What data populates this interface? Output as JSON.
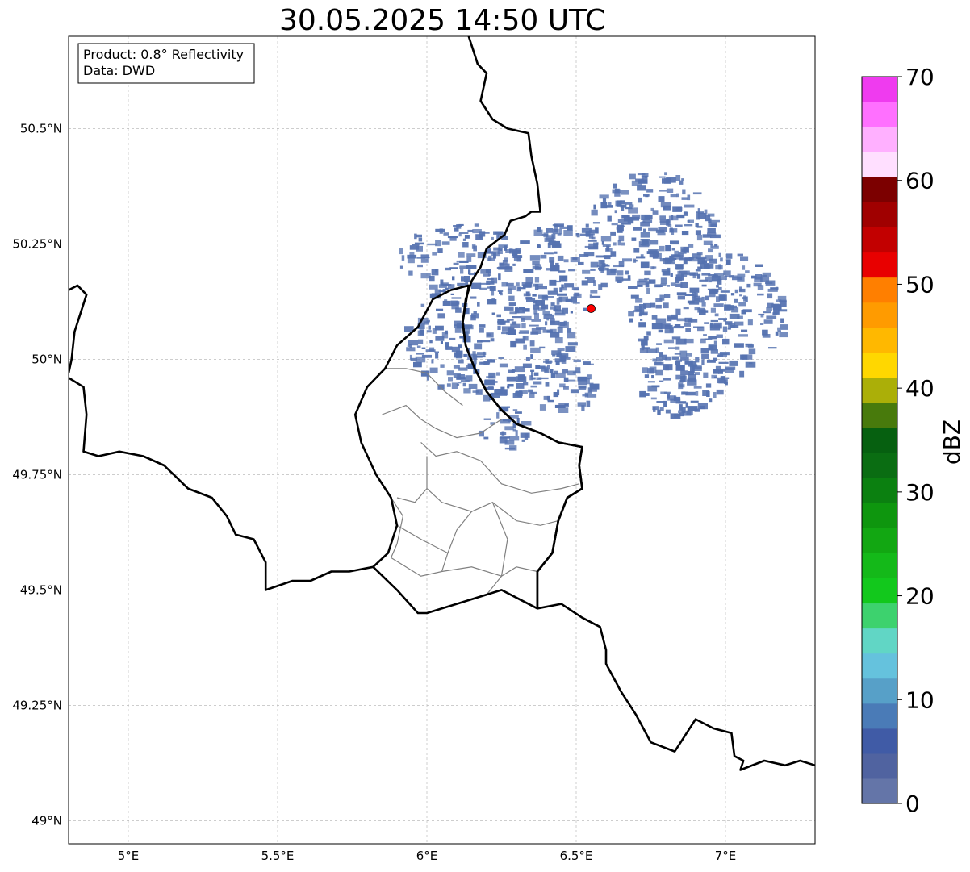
{
  "title": "30.05.2025 14:50 UTC",
  "info_box": {
    "product": "Product: 0.8° Reflectivity",
    "data": "Data: DWD"
  },
  "map": {
    "type": "radar-reflectivity-map",
    "lon_range": [
      4.8,
      7.3
    ],
    "lat_range": [
      48.95,
      50.7
    ],
    "lon_ticks": [
      {
        "value": 5.0,
        "label": "5°E"
      },
      {
        "value": 5.5,
        "label": "5.5°E"
      },
      {
        "value": 6.0,
        "label": "6°E"
      },
      {
        "value": 6.5,
        "label": "6.5°E"
      },
      {
        "value": 7.0,
        "label": "7°E"
      }
    ],
    "lat_ticks": [
      {
        "value": 50.5,
        "label": "50.5°N"
      },
      {
        "value": 50.25,
        "label": "50.25°N"
      },
      {
        "value": 50.0,
        "label": "50°N"
      },
      {
        "value": 49.75,
        "label": "49.75°N"
      },
      {
        "value": 49.5,
        "label": "49.5°N"
      },
      {
        "value": 49.25,
        "label": "49.25°N"
      },
      {
        "value": 49.0,
        "label": "49°N"
      }
    ],
    "gridlines": true,
    "radar_site": {
      "lon": 6.55,
      "lat": 50.11,
      "color": "#ff0000"
    },
    "echo_regions": [
      {
        "lon": 6.93,
        "lat": 50.1,
        "r_lon": 0.26,
        "r_lat": 0.15
      },
      {
        "lon": 6.75,
        "lat": 50.28,
        "r_lon": 0.22,
        "r_lat": 0.13
      },
      {
        "lon": 6.2,
        "lat": 50.05,
        "r_lon": 0.28,
        "r_lat": 0.13
      },
      {
        "lon": 6.45,
        "lat": 50.2,
        "r_lon": 0.18,
        "r_lat": 0.1
      },
      {
        "lon": 6.1,
        "lat": 50.22,
        "r_lon": 0.2,
        "r_lat": 0.08
      },
      {
        "lon": 6.45,
        "lat": 49.95,
        "r_lon": 0.12,
        "r_lat": 0.06
      },
      {
        "lon": 6.85,
        "lat": 49.95,
        "r_lon": 0.15,
        "r_lat": 0.07
      },
      {
        "lon": 6.25,
        "lat": 49.85,
        "r_lon": 0.08,
        "r_lat": 0.05
      }
    ],
    "country_borders": [
      [
        [
          6.14,
          50.7
        ],
        [
          6.17,
          50.64
        ],
        [
          6.2,
          50.62
        ],
        [
          6.18,
          50.56
        ],
        [
          6.22,
          50.52
        ],
        [
          6.27,
          50.5
        ],
        [
          6.34,
          50.49
        ],
        [
          6.35,
          50.44
        ],
        [
          6.37,
          50.38
        ],
        [
          6.38,
          50.32
        ],
        [
          6.35,
          50.32
        ],
        [
          6.33,
          50.31
        ],
        [
          6.28,
          50.3
        ],
        [
          6.26,
          50.27
        ],
        [
          6.2,
          50.24
        ],
        [
          6.18,
          50.2
        ],
        [
          6.15,
          50.17
        ],
        [
          6.13,
          50.13
        ],
        [
          6.12,
          50.08
        ],
        [
          6.13,
          50.03
        ],
        [
          6.16,
          49.98
        ],
        [
          6.2,
          49.93
        ],
        [
          6.25,
          49.89
        ],
        [
          6.3,
          49.86
        ],
        [
          6.38,
          49.84
        ],
        [
          6.44,
          49.82
        ],
        [
          6.52,
          49.81
        ],
        [
          6.51,
          49.77
        ],
        [
          6.52,
          49.72
        ],
        [
          6.47,
          49.7
        ],
        [
          6.44,
          49.65
        ],
        [
          6.42,
          49.58
        ],
        [
          6.37,
          49.54
        ],
        [
          6.37,
          49.46
        ]
      ],
      [
        [
          5.82,
          49.55
        ],
        [
          5.87,
          49.58
        ],
        [
          5.9,
          49.64
        ],
        [
          5.88,
          49.7
        ],
        [
          5.83,
          49.75
        ],
        [
          5.78,
          49.82
        ],
        [
          5.76,
          49.88
        ],
        [
          5.8,
          49.94
        ],
        [
          5.86,
          49.98
        ],
        [
          5.9,
          50.03
        ],
        [
          5.97,
          50.07
        ],
        [
          6.02,
          50.13
        ],
        [
          6.08,
          50.15
        ],
        [
          6.14,
          50.16
        ],
        [
          6.12,
          50.08
        ],
        [
          6.13,
          50.03
        ],
        [
          6.16,
          49.98
        ],
        [
          6.2,
          49.93
        ],
        [
          6.25,
          49.89
        ],
        [
          6.3,
          49.86
        ],
        [
          6.38,
          49.84
        ],
        [
          6.44,
          49.82
        ],
        [
          6.52,
          49.81
        ],
        [
          6.51,
          49.77
        ],
        [
          6.52,
          49.72
        ],
        [
          6.47,
          49.7
        ],
        [
          6.44,
          49.65
        ],
        [
          6.42,
          49.58
        ],
        [
          6.37,
          49.54
        ],
        [
          6.37,
          49.46
        ],
        [
          6.25,
          49.5
        ],
        [
          6.2,
          49.49
        ],
        [
          6.1,
          49.47
        ],
        [
          6.0,
          49.45
        ],
        [
          5.97,
          49.45
        ],
        [
          5.9,
          49.5
        ],
        [
          5.82,
          49.55
        ]
      ],
      [
        [
          4.8,
          50.15
        ],
        [
          4.83,
          50.16
        ],
        [
          4.86,
          50.14
        ],
        [
          4.84,
          50.1
        ],
        [
          4.82,
          50.06
        ],
        [
          4.81,
          50.0
        ],
        [
          4.8,
          49.97
        ]
      ],
      [
        [
          4.8,
          49.96
        ],
        [
          4.85,
          49.94
        ],
        [
          4.86,
          49.88
        ],
        [
          4.85,
          49.8
        ],
        [
          4.9,
          49.79
        ],
        [
          4.97,
          49.8
        ],
        [
          5.05,
          49.79
        ],
        [
          5.12,
          49.77
        ],
        [
          5.2,
          49.72
        ],
        [
          5.28,
          49.7
        ],
        [
          5.33,
          49.66
        ],
        [
          5.36,
          49.62
        ],
        [
          5.42,
          49.61
        ],
        [
          5.46,
          49.56
        ],
        [
          5.46,
          49.5
        ],
        [
          5.55,
          49.52
        ],
        [
          5.61,
          49.52
        ],
        [
          5.68,
          49.54
        ],
        [
          5.74,
          49.54
        ],
        [
          5.82,
          49.55
        ]
      ],
      [
        [
          6.37,
          49.46
        ],
        [
          6.45,
          49.47
        ],
        [
          6.52,
          49.44
        ],
        [
          6.58,
          49.42
        ],
        [
          6.6,
          49.37
        ],
        [
          6.6,
          49.34
        ],
        [
          6.65,
          49.28
        ],
        [
          6.68,
          49.25
        ],
        [
          6.7,
          49.23
        ],
        [
          6.75,
          49.17
        ],
        [
          6.83,
          49.15
        ],
        [
          6.86,
          49.18
        ],
        [
          6.9,
          49.22
        ],
        [
          6.96,
          49.2
        ],
        [
          7.02,
          49.19
        ],
        [
          7.03,
          49.14
        ],
        [
          7.06,
          49.13
        ],
        [
          7.05,
          49.11
        ],
        [
          7.13,
          49.13
        ],
        [
          7.2,
          49.12
        ],
        [
          7.25,
          49.13
        ],
        [
          7.3,
          49.12
        ]
      ]
    ],
    "provincial_borders": [
      [
        [
          5.86,
          49.98
        ],
        [
          5.93,
          49.98
        ],
        [
          6.0,
          49.97
        ],
        [
          6.06,
          49.93
        ],
        [
          6.12,
          49.9
        ]
      ],
      [
        [
          5.85,
          49.88
        ],
        [
          5.93,
          49.9
        ],
        [
          5.98,
          49.87
        ],
        [
          6.03,
          49.85
        ],
        [
          6.1,
          49.83
        ],
        [
          6.18,
          49.84
        ],
        [
          6.25,
          49.87
        ]
      ],
      [
        [
          5.98,
          49.82
        ],
        [
          6.03,
          49.79
        ],
        [
          6.1,
          49.8
        ],
        [
          6.18,
          49.78
        ],
        [
          6.25,
          49.73
        ],
        [
          6.35,
          49.71
        ],
        [
          6.45,
          49.72
        ],
        [
          6.51,
          49.73
        ]
      ],
      [
        [
          6.0,
          49.79
        ],
        [
          6.0,
          49.72
        ],
        [
          5.96,
          49.69
        ],
        [
          5.9,
          49.7
        ]
      ],
      [
        [
          6.0,
          49.72
        ],
        [
          6.05,
          49.69
        ],
        [
          6.15,
          49.67
        ],
        [
          6.22,
          49.69
        ],
        [
          6.3,
          49.65
        ],
        [
          6.38,
          49.64
        ],
        [
          6.44,
          49.65
        ]
      ],
      [
        [
          6.15,
          49.67
        ],
        [
          6.1,
          49.63
        ],
        [
          6.07,
          49.58
        ],
        [
          6.05,
          49.54
        ]
      ],
      [
        [
          6.22,
          49.69
        ],
        [
          6.27,
          49.61
        ],
        [
          6.25,
          49.53
        ],
        [
          6.2,
          49.49
        ]
      ],
      [
        [
          5.88,
          49.7
        ],
        [
          5.92,
          49.66
        ],
        [
          5.9,
          49.6
        ],
        [
          5.88,
          49.57
        ]
      ],
      [
        [
          5.9,
          49.64
        ],
        [
          5.98,
          49.61
        ],
        [
          6.07,
          49.58
        ]
      ],
      [
        [
          5.88,
          49.57
        ],
        [
          5.98,
          49.53
        ],
        [
          6.05,
          49.54
        ],
        [
          6.15,
          49.55
        ],
        [
          6.25,
          49.53
        ],
        [
          6.3,
          49.55
        ],
        [
          6.37,
          49.54
        ]
      ]
    ]
  },
  "colorbar": {
    "label": "dBZ",
    "min": 0,
    "max": 70,
    "tick_values": [
      0,
      10,
      20,
      30,
      40,
      50,
      60,
      70
    ],
    "tick_labels": [
      "0",
      "10",
      "20",
      "30",
      "40",
      "50",
      "60",
      "70"
    ],
    "colors": [
      "#6475a8",
      "#5063a0",
      "#405ba6",
      "#4a7bb7",
      "#57a0c8",
      "#65c2dd",
      "#61d6c5",
      "#3dd26e",
      "#12c81c",
      "#14b919",
      "#12a712",
      "#0e960e",
      "#0b8010",
      "#0a6d12",
      "#066010",
      "#487a0c",
      "#abaf08",
      "#ffd700",
      "#ffb800",
      "#ff9b00",
      "#ff7f00",
      "#e80000",
      "#c20000",
      "#a00000",
      "#7c0000",
      "#ffdfff",
      "#ffb0ff",
      "#ff70ff",
      "#ef3bef"
    ],
    "echo_color": "#5572b0"
  }
}
